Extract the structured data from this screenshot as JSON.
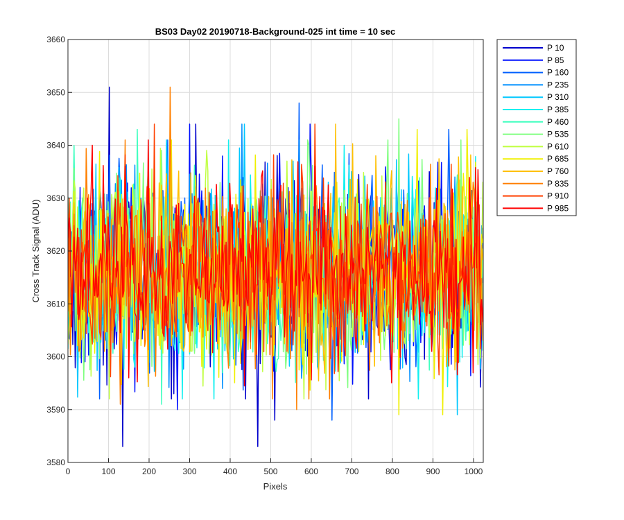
{
  "chart_data": {
    "type": "line",
    "title": "BS03 Day02 20190718-Background-025 int time = 10 sec",
    "xlabel": "Pixels",
    "ylabel": "Cross Track Signal (ADU)",
    "xlim": [
      0,
      1024
    ],
    "ylim": [
      3580,
      3660
    ],
    "xticks": [
      0,
      100,
      200,
      300,
      400,
      500,
      600,
      700,
      800,
      900,
      1000
    ],
    "yticks": [
      3580,
      3590,
      3600,
      3610,
      3620,
      3630,
      3640,
      3650,
      3660
    ],
    "grid": true,
    "legend_position": "outside-top-right",
    "noise_mean": 3616,
    "noise_std": 8.5,
    "series": [
      {
        "name": "P 10",
        "color": "#0000cc",
        "spikes": [
          [
            101,
            3651
          ],
          [
            316,
            3644
          ],
          [
            468,
            3583
          ],
          [
            510,
            3588
          ],
          [
            135,
            3583
          ]
        ]
      },
      {
        "name": "P 85",
        "color": "#0010ff",
        "spikes": [
          [
            300,
            3644
          ],
          [
            270,
            3590
          ],
          [
            598,
            3644
          ]
        ]
      },
      {
        "name": "P 160",
        "color": "#0060ff",
        "spikes": [
          [
            570,
            3648
          ],
          [
            650,
            3588
          ],
          [
            940,
            3643
          ]
        ]
      },
      {
        "name": "P 235",
        "color": "#0090ff",
        "spikes": [
          [
            430,
            3644
          ],
          [
            380,
            3594
          ]
        ]
      },
      {
        "name": "P 310",
        "color": "#00c8ff",
        "spikes": [
          [
            435,
            3644
          ],
          [
            960,
            3589
          ]
        ]
      },
      {
        "name": "P 385",
        "color": "#10f0f0",
        "spikes": [
          [
            680,
            3640
          ]
        ]
      },
      {
        "name": "P 460",
        "color": "#40ffc0",
        "spikes": [
          [
            170,
            3643
          ],
          [
            230,
            3591
          ]
        ]
      },
      {
        "name": "P 535",
        "color": "#80ff80",
        "spikes": [
          [
            815,
            3645
          ]
        ]
      },
      {
        "name": "P 610",
        "color": "#c0ff40",
        "spikes": [
          [
            540,
            3637
          ]
        ]
      },
      {
        "name": "P 685",
        "color": "#f0f000",
        "spikes": [
          [
            815,
            3589
          ],
          [
            862,
            3643
          ],
          [
            925,
            3589
          ],
          [
            985,
            3643
          ]
        ]
      },
      {
        "name": "P 760",
        "color": "#ffc000",
        "spikes": [
          [
            660,
            3644
          ],
          [
            760,
            3638
          ]
        ]
      },
      {
        "name": "P 835",
        "color": "#ff8000",
        "spikes": [
          [
            252,
            3651
          ],
          [
            130,
            3591
          ],
          [
            565,
            3590
          ]
        ]
      },
      {
        "name": "P 910",
        "color": "#ff4000",
        "spikes": [
          [
            212,
            3644
          ],
          [
            610,
            3644
          ]
        ]
      },
      {
        "name": "P 985",
        "color": "#ff0000",
        "spikes": [
          [
            60,
            3640
          ],
          [
            150,
            3596
          ]
        ]
      }
    ]
  }
}
